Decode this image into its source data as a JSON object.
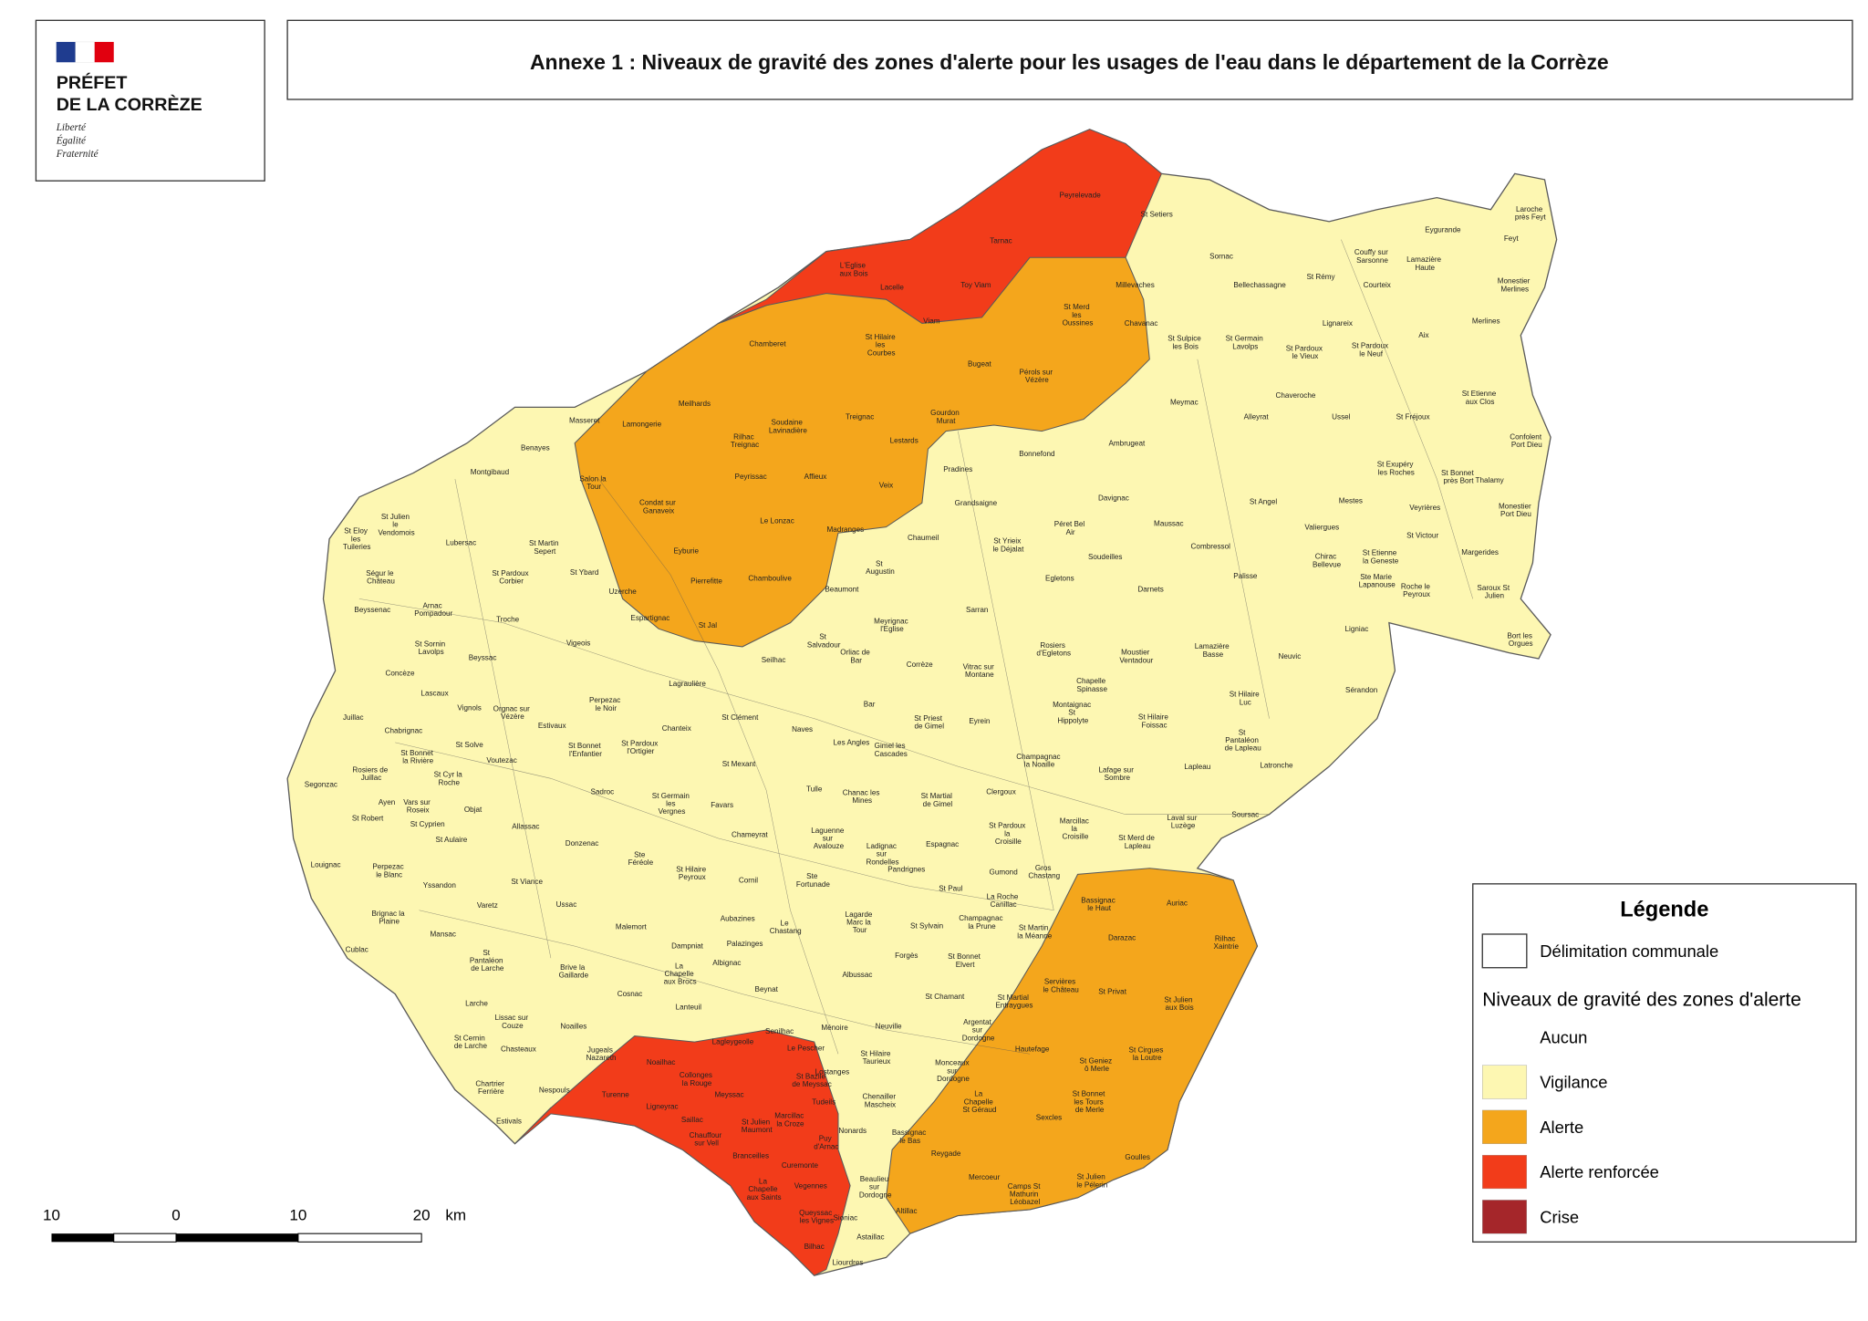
{
  "header": {
    "brand": [
      "PRÉFET",
      "DE LA CORRÈZE"
    ],
    "motto": [
      "Liberté",
      "Égalité",
      "Fraternité"
    ]
  },
  "title": "Annexe 1 : Niveaux de gravité des zones d'alerte pour les usages de l'eau dans le département de la Corrèze",
  "legend": {
    "title": "Légende",
    "boundary": "Délimitation communale",
    "section": "Niveaux de gravité des zones d'alerte",
    "levels": [
      {
        "name": "Aucun",
        "color": "#ffffff"
      },
      {
        "name": "Vigilance",
        "color": "#fdf7b2"
      },
      {
        "name": "Alerte",
        "color": "#f4a61c"
      },
      {
        "name": "Alerte renforcée",
        "color": "#f23c1a"
      },
      {
        "name": "Crise",
        "color": "#a5262a"
      }
    ]
  },
  "scale": {
    "labels": [
      "10",
      "0",
      "10",
      "20"
    ],
    "unit": "km"
  },
  "communes": [
    "Peyrelevade",
    "St Setiers",
    "Tarnac",
    "L'Eglise aux Bois",
    "Lacelle",
    "Toy Viam",
    "Viam",
    "Sornac",
    "Bellechassagne",
    "Millevaches",
    "St Merd les Oussines",
    "Chavanac",
    "Chamberet",
    "St Hilaire les Courbes",
    "Bugeat",
    "Pérols sur Vézère",
    "St Sulpice les Bois",
    "St Germain Lavolps",
    "St Rémy",
    "Couffy sur Sarsonne",
    "Eygurande",
    "Lamazière Haute",
    "Laroche près Feyt",
    "Feyt",
    "Monestier Merlines",
    "Courteix",
    "Lignareix",
    "St Pardoux le Vieux",
    "St Pardoux le Neuf",
    "Aix",
    "Merlines",
    "Meymac",
    "Chaveroche",
    "Alleyrat",
    "Ussel",
    "St Fréjoux",
    "St Etienne aux Clos",
    "Confolent Port Dieu",
    "Gourdon Murat",
    "Treignac",
    "Meilhards",
    "Masseret",
    "Lamongerie",
    "Soudaine Lavinadière",
    "Rilhac Treignac",
    "Lestards",
    "Bonnefond",
    "Ambrugeat",
    "Benayes",
    "Montgibaud",
    "Salon la Tour",
    "Peyrissac",
    "Affieux",
    "Veix",
    "Pradines",
    "St Exupéry les Roches",
    "St Bonnet près Bort",
    "Thalamy",
    "Condat sur Ganaveix",
    "Le Lonzac",
    "Madranges",
    "Grandsaigne",
    "Davignac",
    "St Angel",
    "Mestes",
    "Veyrières",
    "Monestier Port Dieu",
    "St Julien le Vendomois",
    "Lubersac",
    "St Martin Sepert",
    "Chaumeil",
    "St Yrieix le Déjalat",
    "Péret Bel Air",
    "Maussac",
    "Valiergues",
    "St Victour",
    "Eyburie",
    "Soudeilles",
    "Combressol",
    "Chirac Bellevue",
    "St Etienne la Geneste",
    "Margerides",
    "St Eloy les Tuileries",
    "Ségur le Château",
    "St Pardoux Corbier",
    "St Ybard",
    "Pierrefitte",
    "Chamboulive",
    "St Augustin",
    "Egletons",
    "Palisse",
    "Ste Marie Lapanouse",
    "Roche le Peyroux",
    "Saroux St Julien",
    "Uzerche",
    "Beaumont",
    "Darnets",
    "Beyssenac",
    "Arnac Pompadour",
    "Troche",
    "Espartignac",
    "St Jal",
    "Meyrignac l'Eglise",
    "Sarran",
    "Rosiers d'Egletons",
    "Moustier Ventadour",
    "Lamazière Basse",
    "Ligniac",
    "Bort les Orgues",
    "Vigeois",
    "St Sornin Lavolps",
    "Beyssac",
    "St Salvadour",
    "Orliac de Bar",
    "Seilhac",
    "Corrèze",
    "Vitrac sur Montane",
    "Neuvic",
    "Concèze",
    "Lagraulière",
    "Perpezac le Noir",
    "Chapelle Spinasse",
    "Sérandon",
    "Lascaux",
    "Vignols",
    "Orgnac sur Vézère",
    "Estivaux",
    "Chanteix",
    "St Clément",
    "Naves",
    "Bar",
    "St Priest de Gimel",
    "Eyrein",
    "Montaignac St Hippolyte",
    "St Hilaire Foissac",
    "St Hilaire Luc",
    "St Pantaléon de Lapleau",
    "Juillac",
    "Chabrignac",
    "St Solve",
    "St Bonnet l'Enfantier",
    "St Pardoux l'Ortigier",
    "Les Angles",
    "Gimel les Cascades",
    "Champagnac la Noaille",
    "Lafage sur Sombre",
    "Lapleau",
    "Latronche",
    "Voutezac",
    "St Mexant",
    "Segonzac",
    "Rosiers de Juillac",
    "St Bonnet la Rivière",
    "St Cyr la Roche",
    "Vars sur Roseix",
    "Objat",
    "Sadroc",
    "Tulle",
    "Chanac les Mines",
    "St Martial de Gimel",
    "Clergoux",
    "St Germain les Vergnes",
    "Favars",
    "Laval sur Luzège",
    "Soursac",
    "St Robert",
    "Ayen",
    "St Cyprien",
    "St Aulaire",
    "Allassac",
    "Chameyrat",
    "Laguenne sur Avalouze",
    "Espagnac",
    "St Pardoux la Croisille",
    "Marcillac la Croisille",
    "St Merd de Lapleau",
    "Donzenac",
    "Ste Féréole",
    "Louignac",
    "Perpezac le Blanc",
    "Yssandon",
    "St Viance",
    "Ladignac sur Rondelles",
    "Gumond",
    "Gros Chastang",
    "Pandrignes",
    "St Hilaire Peyroux",
    "Cornil",
    "Ste Fortunade",
    "Varetz",
    "Ussac",
    "La Roche Canillac",
    "St Paul",
    "Bassignac le Haut",
    "Auriac",
    "Brignac la Plaine",
    "Mansac",
    "Malemort",
    "Lagarde Marc la Tour",
    "Champagnac la Prune",
    "St Sylvain",
    "St Martin la Méanne",
    "Darazac",
    "Rilhac Xaintrie",
    "Aubazines",
    "Le Chastang",
    "Dampniat",
    "Palazinges",
    "Cublac",
    "St Pantaléon de Larche",
    "Brive la Gaillarde",
    "La Chapelle aux Brocs",
    "Albignac",
    "Forgès",
    "St Bonnet Elvert",
    "Albussac",
    "Servières le Château",
    "St Privat",
    "St Julien aux Bois",
    "Beynat",
    "St Chamant",
    "St Martial Entraygues",
    "Cosnac",
    "Lanteuil",
    "Larche",
    "Lissac sur Couze",
    "Argentat sur Dordogne",
    "Noailles",
    "Ménoire",
    "Neuville",
    "St Cernin de Larche",
    "Chasteaux",
    "Jugeals Nazareth",
    "Senilhac",
    "Le Pescher",
    "Lagleygeolle",
    "St Hilaire Taurieux",
    "Monceaux sur Dordogne",
    "Hautefage",
    "St Geniez ô Merle",
    "St Cirgues la Loutre",
    "Noailhac",
    "Collonges la Rouge",
    "St Bazile de Meyssac",
    "Chartrier Ferrière",
    "Nespouls",
    "Turenne",
    "Meyssac",
    "Tudeils",
    "Chenailler Mascheix",
    "La Chapelle St Géraud",
    "St Bonnet les Tours de Merle",
    "Ligneyrac",
    "Saillac",
    "Marcillac la Croze",
    "St Julien Maumont",
    "Sexcles",
    "Estivals",
    "Puy d'Arnac",
    "Nonards",
    "Bassignac le Bas",
    "Chauffour sur Vell",
    "Branceilles",
    "Reygade",
    "Goulles",
    "Curemonte",
    "Mercoeur",
    "Camps St Mathurin Léobazel",
    "St Julien le Pélerin",
    "Beaulieu sur Dordogne",
    "La Chapelle aux Saints",
    "Vegennes",
    "Queyssac les Vignes",
    "Sioniac",
    "Altillac",
    "Astaillac",
    "Bilhac",
    "Liourdres",
    "Lostanges"
  ]
}
